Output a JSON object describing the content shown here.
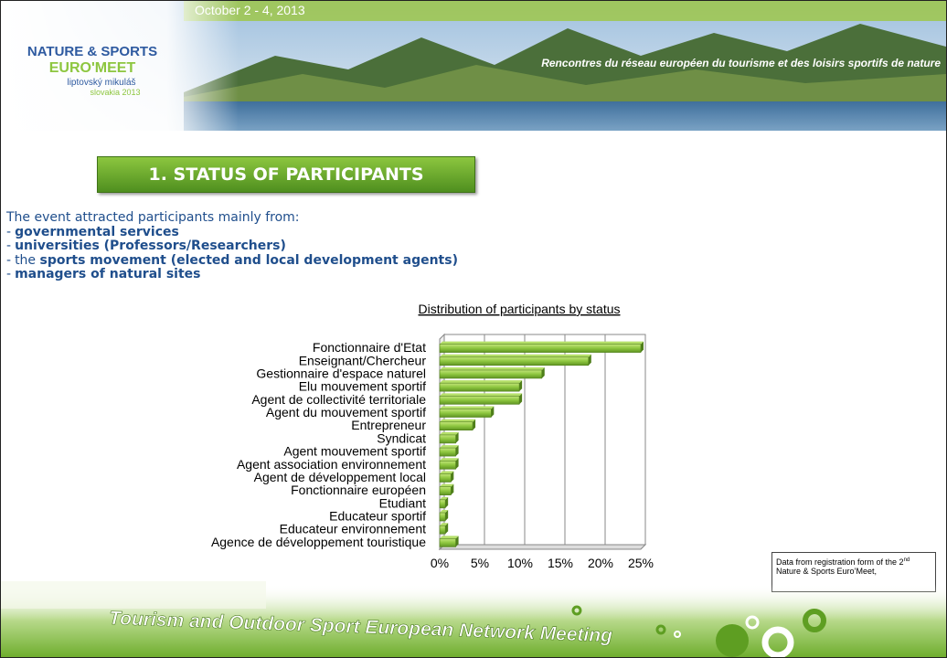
{
  "header": {
    "date": "October 2 - 4, 2013",
    "logo_line1": "NATURE & SPORTS",
    "logo_line2": "EURO'MEET",
    "logo_line3": "liptovský mikuláš",
    "logo_line4": "slovakia 2013",
    "tagline": "Rencontres du réseau européen du tourisme et des loisirs sportifs de nature"
  },
  "section_title": "1.  STATUS OF PARTICIPANTS",
  "intro": {
    "text": "The event attracted participants mainly from:",
    "bullet_marker": "-",
    "items": [
      {
        "text": "governmental services"
      },
      {
        "text": "universities (Professors/Researchers)"
      },
      {
        "lead": "the",
        "text": "sports movement (elected and local development agents)"
      },
      {
        "text": "managers of natural sites"
      }
    ]
  },
  "chart_data": {
    "type": "hbar",
    "title": "Distribution of participants by status",
    "categories": [
      "Fonctionnaire d'Etat",
      "Enseignant/Chercheur",
      "Gestionnaire d'espace naturel",
      "Elu mouvement sportif",
      "Agent de collectivité territoriale",
      "Agent du mouvement sportif",
      "Entrepreneur",
      "Syndicat",
      "Agent mouvement sportif",
      "Agent association environnement",
      "Agent de développement local",
      "Fonctionnaire européen",
      "Etudiant",
      "Educateur sportif",
      "Educateur environnement",
      "Agence de développement touristique"
    ],
    "values": [
      25,
      18.5,
      12.7,
      9.9,
      9.9,
      6.4,
      4.1,
      2.0,
      2.0,
      2.0,
      1.4,
      1.4,
      0.7,
      0.7,
      0.7,
      2.0
    ],
    "color": "#8dc63f",
    "xlim": [
      0,
      25
    ],
    "xticks": [
      {
        "value": 0,
        "label": "0%"
      },
      {
        "value": 5,
        "label": "5%"
      },
      {
        "value": 10,
        "label": "10%"
      },
      {
        "value": 15,
        "label": "15%"
      },
      {
        "value": 20,
        "label": "20%"
      },
      {
        "value": 25,
        "label": "25%"
      }
    ],
    "grid": true
  },
  "note": {
    "text": "Data from registration form of the 2",
    "superscript": "nd",
    "text_end": " Nature & Sports Euro’Meet,"
  },
  "footer": "Tourism and Outdoor Sport European Network Meeting"
}
